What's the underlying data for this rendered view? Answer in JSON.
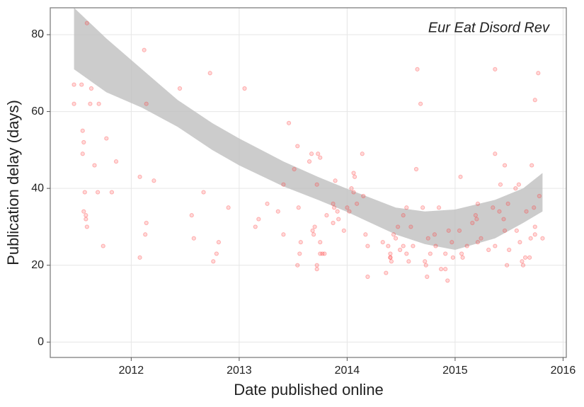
{
  "chart_data": {
    "type": "scatter",
    "annotation": "Eur Eat Disord Rev",
    "x_label": "Date published online",
    "y_label": "Publication delay (days)",
    "xlim": [
      2011.25,
      2016.03
    ],
    "ylim": [
      -4,
      87
    ],
    "xticks": [
      2012,
      2013,
      2014,
      2015,
      2016
    ],
    "yticks": [
      0,
      20,
      40,
      60,
      80
    ],
    "grid": true,
    "series": [
      {
        "color": "#ff3b3b",
        "x": [
          2011.47,
          2011.47,
          2011.54,
          2011.59,
          2011.55,
          2011.56,
          2011.55,
          2011.57,
          2011.56,
          2011.58,
          2011.58,
          2011.59,
          2011.63,
          2011.62,
          2011.66,
          2011.69,
          2011.7,
          2011.74,
          2011.77,
          2011.82,
          2011.86,
          2012.08,
          2012.08,
          2012.12,
          2012.14,
          2012.14,
          2012.13,
          2012.21,
          2012.45,
          2012.56,
          2012.58,
          2012.67,
          2012.73,
          2012.76,
          2012.79,
          2012.81,
          2012.9,
          2013.05,
          2013.15,
          2013.18,
          2013.26,
          2013.36,
          2013.41,
          2013.41,
          2013.46,
          2013.51,
          2013.54,
          2013.54,
          2013.55,
          2013.56,
          2013.57,
          2013.65,
          2013.67,
          2013.68,
          2013.69,
          2013.72,
          2013.72,
          2013.73,
          2013.75,
          2013.75,
          2013.75,
          2013.77,
          2013.79,
          2013.7,
          2013.72,
          2013.81,
          2013.87,
          2013.87,
          2013.88,
          2013.89,
          2013.91,
          2013.92,
          2013.97,
          2014.0,
          2014.02,
          2014.04,
          2014.06,
          2014.07,
          2014.06,
          2014.09,
          2014.14,
          2014.15,
          2014.17,
          2014.19,
          2014.19,
          2014.33,
          2014.36,
          2014.38,
          2014.4,
          2014.4,
          2014.41,
          2014.4,
          2014.43,
          2014.45,
          2014.47,
          2014.49,
          2014.52,
          2014.52,
          2014.55,
          2014.55,
          2014.57,
          2014.59,
          2014.61,
          2014.64,
          2014.65,
          2014.68,
          2014.7,
          2014.72,
          2014.73,
          2014.74,
          2014.75,
          2014.77,
          2014.81,
          2014.82,
          2014.85,
          2014.87,
          2014.91,
          2014.91,
          2014.93,
          2014.94,
          2014.97,
          2014.98,
          2015.04,
          2015.05,
          2015.06,
          2015.07,
          2015.11,
          2015.16,
          2015.19,
          2015.2,
          2015.21,
          2015.24,
          2015.21,
          2015.31,
          2015.37,
          2015.37,
          2015.35,
          2015.37,
          2015.41,
          2015.42,
          2015.45,
          2015.46,
          2015.46,
          2015.48,
          2015.5,
          2015.49,
          2015.56,
          2015.57,
          2015.59,
          2015.6,
          2015.62,
          2015.63,
          2015.65,
          2015.66,
          2015.69,
          2015.7,
          2015.71,
          2015.73,
          2015.74,
          2015.74,
          2015.74,
          2015.77,
          2015.78,
          2015.81
        ],
        "values": [
          67,
          62,
          67,
          83,
          55,
          52,
          49,
          39,
          34,
          33,
          32,
          30,
          66,
          62,
          46,
          39,
          62,
          25,
          53,
          39,
          47,
          43,
          22,
          76,
          62,
          31,
          28,
          42,
          66,
          33,
          27,
          39,
          70,
          21,
          23,
          26,
          35,
          66,
          30,
          32,
          36,
          34,
          28,
          41,
          57,
          45,
          51,
          20,
          35,
          23,
          26,
          47,
          49,
          29,
          28,
          41,
          20,
          49,
          48,
          26,
          23,
          23,
          23,
          30,
          19,
          33,
          31,
          36,
          35,
          42,
          34,
          32,
          29,
          35,
          34,
          40,
          44,
          43,
          39,
          36,
          49,
          38,
          28,
          25,
          17,
          26,
          18,
          25,
          23,
          22,
          21,
          22,
          28,
          27,
          30,
          24,
          25,
          33,
          23,
          35,
          21,
          30,
          25,
          45,
          71,
          62,
          35,
          21,
          20,
          17,
          27,
          23,
          28,
          25,
          35,
          19,
          23,
          19,
          16,
          29,
          26,
          22,
          29,
          43,
          23,
          22,
          25,
          31,
          33,
          32,
          26,
          27,
          36,
          24,
          71,
          49,
          35,
          25,
          34,
          41,
          32,
          29,
          46,
          20,
          24,
          36,
          40,
          29,
          41,
          26,
          21,
          20,
          22,
          34,
          22,
          27,
          46,
          35,
          30,
          28,
          63,
          70,
          38,
          27
        ]
      }
    ],
    "band": {
      "color": "#bfbfbf",
      "x": [
        2011.47,
        2011.77,
        2012.1,
        2012.43,
        2012.75,
        2013.0,
        2013.41,
        2013.73,
        2013.99,
        2014.45,
        2014.72,
        2015.0,
        2015.37,
        2015.63,
        2015.81
      ],
      "upper": [
        87,
        79,
        71,
        63,
        57,
        53,
        47,
        43,
        40,
        35,
        34,
        34.5,
        37,
        40,
        44
      ],
      "lower": [
        71,
        65,
        61,
        56,
        50,
        46,
        40.5,
        37,
        34,
        28,
        25.5,
        24,
        27,
        31,
        34
      ]
    }
  }
}
